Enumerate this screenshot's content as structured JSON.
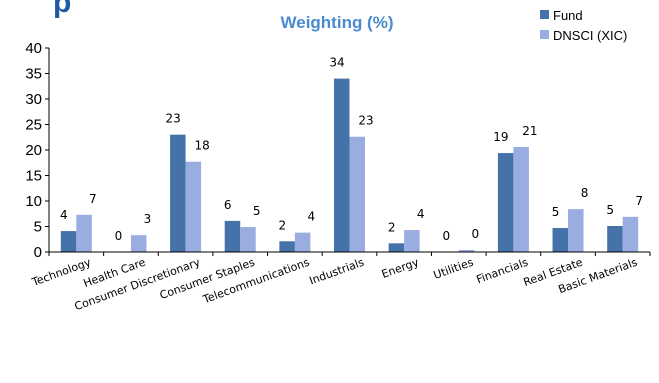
{
  "colors": {
    "fund": "#4472a9",
    "benchmark": "#99ade0",
    "title": "#4a8ad0",
    "heading": "#1f5aa6"
  },
  "page_heading_fragment": "p",
  "chart_data": {
    "type": "bar",
    "title": "Weighting (%)",
    "xlabel": "",
    "ylabel": "",
    "ylim": [
      0,
      40
    ],
    "yticks": [
      0,
      5,
      10,
      15,
      20,
      25,
      30,
      35,
      40
    ],
    "grid": false,
    "legend_position": "top-right",
    "categories": [
      "Technology",
      "Health Care",
      "Consumer Discretionary",
      "Consumer Staples",
      "Telecommunications",
      "Industrials",
      "Energy",
      "Utilities",
      "Financials",
      "Real Estate",
      "Basic Materials"
    ],
    "series": [
      {
        "name": "Fund",
        "values": [
          4.1,
          0,
          23,
          6.1,
          2.1,
          34,
          1.7,
          0,
          19.4,
          4.7,
          5.1
        ],
        "labels": [
          "4",
          "0",
          "23",
          "6",
          "2",
          "34",
          "2",
          "0",
          "19",
          "5",
          "5"
        ]
      },
      {
        "name": "DNSCI (XIC)",
        "values": [
          7.3,
          3.3,
          17.7,
          4.9,
          3.8,
          22.6,
          4.3,
          0.4,
          20.6,
          8.4,
          6.9
        ],
        "labels": [
          "7",
          "3",
          "18",
          "5",
          "4",
          "23",
          "4",
          "0",
          "21",
          "8",
          "7"
        ]
      }
    ]
  }
}
